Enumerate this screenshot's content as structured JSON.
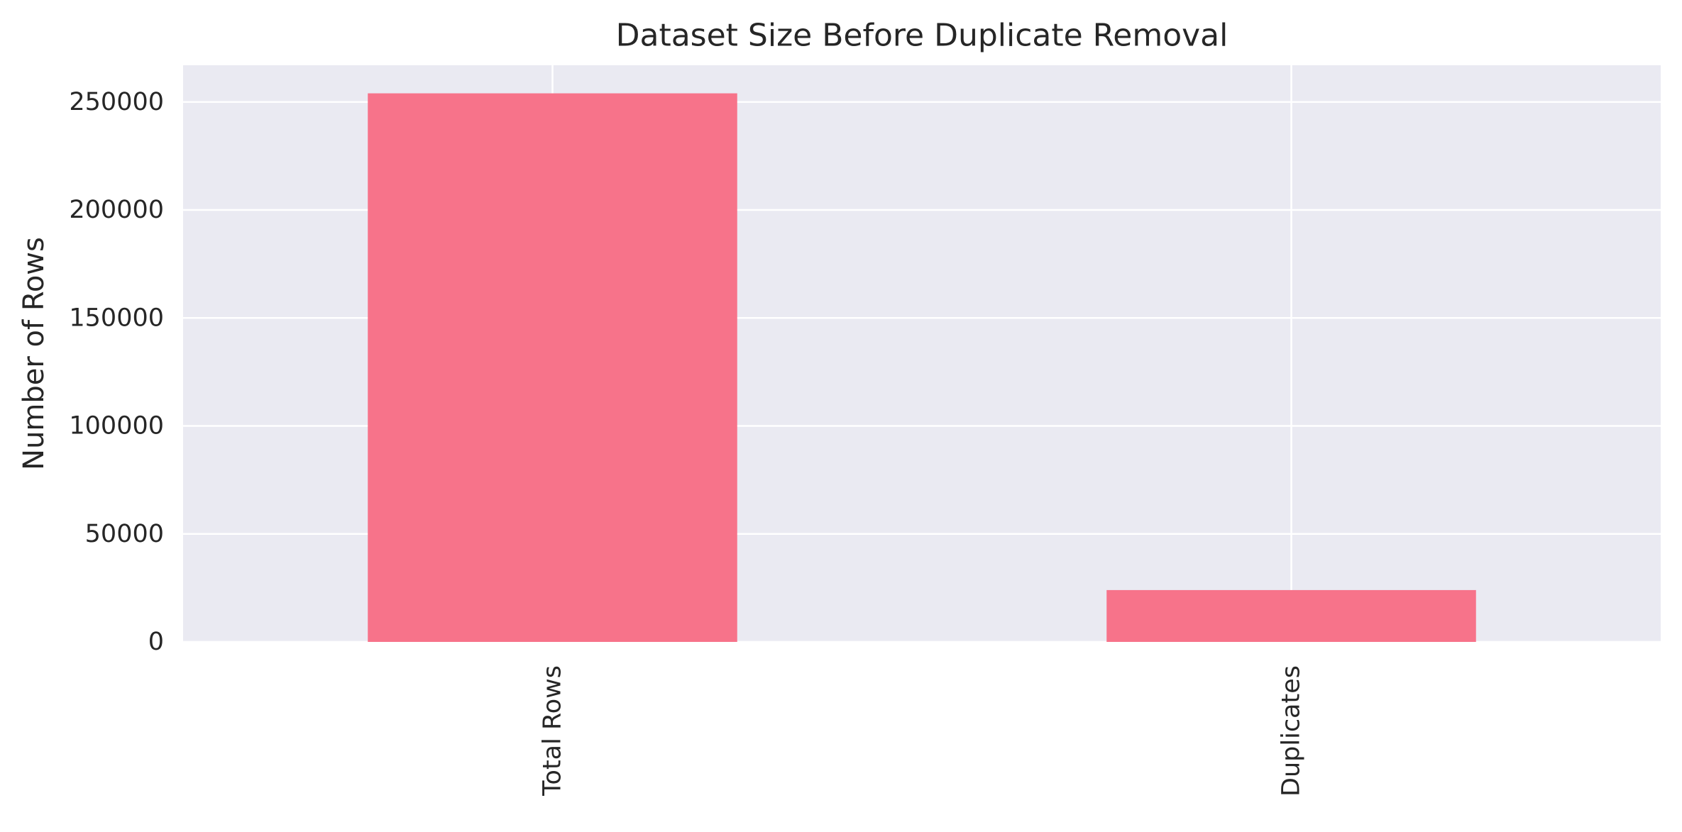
{
  "chart_data": {
    "type": "bar",
    "title": "Dataset Size Before Duplicate Removal",
    "xlabel": "",
    "ylabel": "Number of Rows",
    "categories": [
      "Total Rows",
      "Duplicates"
    ],
    "values": [
      254000,
      24000
    ],
    "ylim": [
      0,
      267000
    ],
    "yticks": [
      0,
      50000,
      100000,
      150000,
      200000,
      250000
    ],
    "ytick_labels": [
      "0",
      "50000",
      "100000",
      "150000",
      "200000",
      "250000"
    ],
    "grid": true,
    "legend": "none",
    "colors": {
      "bar": "#f7738a",
      "plot_background": "#eaeaf2",
      "grid": "#ffffff",
      "text": "#262626"
    }
  }
}
